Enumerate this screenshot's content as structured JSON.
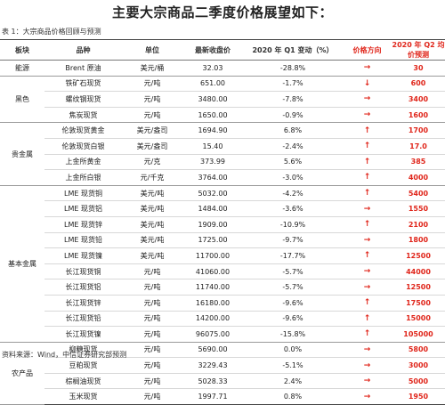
{
  "title": "主要大宗商品二季度价格展望如下：",
  "caption": "表 1：大宗商品价格回顾与预测",
  "headers": {
    "sector": "板块",
    "variety": "品种",
    "unit": "单位",
    "latest_close": "最新收盘价",
    "q1_change": "2020 年 Q1 变动（%）",
    "direction": "价格方向",
    "q2_forecast": "2020 年 Q2 均价预测"
  },
  "colors": {
    "forecast_red": "#e0261b",
    "rule": "#444444"
  },
  "direction_icons": {
    "up": "arrow-up-icon (↑)",
    "down": "arrow-down-icon (↓)",
    "flat": "arrow-right-icon (→)"
  },
  "groups": [
    {
      "name": "能源",
      "rows": [
        {
          "variety": "Brent 原油",
          "unit": "美元/桶",
          "price": "32.03",
          "change": "-28.8%",
          "dir": "→",
          "forecast": "30"
        }
      ]
    },
    {
      "name": "黑色",
      "rows": [
        {
          "variety": "铁矿石现货",
          "unit": "元/吨",
          "price": "651.00",
          "change": "-1.7%",
          "dir": "↓",
          "forecast": "600"
        },
        {
          "variety": "螺纹钢现货",
          "unit": "元/吨",
          "price": "3480.00",
          "change": "-7.8%",
          "dir": "→",
          "forecast": "3400"
        },
        {
          "variety": "焦炭现货",
          "unit": "元/吨",
          "price": "1650.00",
          "change": "-0.9%",
          "dir": "→",
          "forecast": "1600"
        }
      ]
    },
    {
      "name": "贵金属",
      "rows": [
        {
          "variety": "伦敦现货黄金",
          "unit": "美元/盎司",
          "price": "1694.90",
          "change": "6.8%",
          "dir": "↑",
          "forecast": "1700"
        },
        {
          "variety": "伦敦现货白银",
          "unit": "美元/盎司",
          "price": "15.40",
          "change": "-2.4%",
          "dir": "↑",
          "forecast": "17.0"
        },
        {
          "variety": "上金所黄金",
          "unit": "元/克",
          "price": "373.99",
          "change": "5.6%",
          "dir": "↑",
          "forecast": "385"
        },
        {
          "variety": "上金所白银",
          "unit": "元/千克",
          "price": "3764.00",
          "change": "-3.0%",
          "dir": "↑",
          "forecast": "4000"
        }
      ]
    },
    {
      "name": "基本金属",
      "rows": [
        {
          "variety": "LME 现货铜",
          "unit": "美元/吨",
          "price": "5032.00",
          "change": "-4.2%",
          "dir": "↑",
          "forecast": "5400"
        },
        {
          "variety": "LME 现货铝",
          "unit": "美元/吨",
          "price": "1484.00",
          "change": "-3.6%",
          "dir": "→",
          "forecast": "1550"
        },
        {
          "variety": "LME 现货锌",
          "unit": "美元/吨",
          "price": "1909.00",
          "change": "-10.9%",
          "dir": "↑",
          "forecast": "2100"
        },
        {
          "variety": "LME 现货铅",
          "unit": "美元/吨",
          "price": "1725.00",
          "change": "-9.7%",
          "dir": "→",
          "forecast": "1800"
        },
        {
          "variety": "LME 现货镍",
          "unit": "美元/吨",
          "price": "11700.00",
          "change": "-17.7%",
          "dir": "↑",
          "forecast": "12500"
        },
        {
          "variety": "长江现货铜",
          "unit": "元/吨",
          "price": "41060.00",
          "change": "-5.7%",
          "dir": "→",
          "forecast": "44000"
        },
        {
          "variety": "长江现货铝",
          "unit": "元/吨",
          "price": "11740.00",
          "change": "-5.7%",
          "dir": "→",
          "forecast": "12500"
        },
        {
          "variety": "长江现货锌",
          "unit": "元/吨",
          "price": "16180.00",
          "change": "-9.6%",
          "dir": "↑",
          "forecast": "17500"
        },
        {
          "variety": "长江现货铅",
          "unit": "元/吨",
          "price": "14200.00",
          "change": "-9.6%",
          "dir": "↑",
          "forecast": "15000"
        },
        {
          "variety": "长江现货镍",
          "unit": "元/吨",
          "price": "96075.00",
          "change": "-15.8%",
          "dir": "↑",
          "forecast": "105000"
        }
      ]
    },
    {
      "name": "农产品",
      "rows": [
        {
          "variety": "柳糖现货",
          "unit": "元/吨",
          "price": "5690.00",
          "change": "0.0%",
          "dir": "→",
          "forecast": "5800"
        },
        {
          "variety": "豆粕现货",
          "unit": "元/吨",
          "price": "3229.43",
          "change": "-5.1%",
          "dir": "→",
          "forecast": "3000"
        },
        {
          "variety": "棕榈油现货",
          "unit": "元/吨",
          "price": "5028.33",
          "change": "2.4%",
          "dir": "→",
          "forecast": "5000"
        },
        {
          "variety": "玉米现货",
          "unit": "元/吨",
          "price": "1997.71",
          "change": "0.8%",
          "dir": "→",
          "forecast": "1950"
        }
      ]
    }
  ],
  "source": "资料来源：Wind，中信证券研究部预测"
}
